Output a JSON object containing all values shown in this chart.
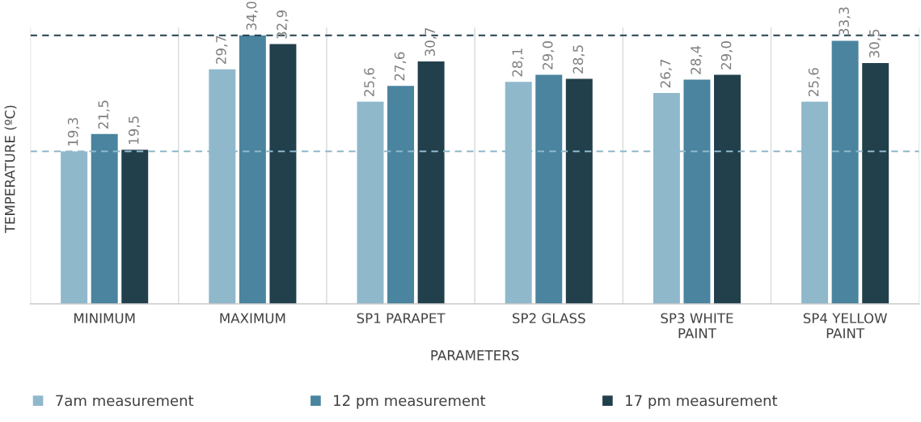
{
  "chart_data": {
    "type": "bar",
    "xlabel": "PARAMETERS",
    "ylabel": "TEMPERATURE (ºC)",
    "categories": [
      "MINIMUM",
      "MAXIMUM",
      "SP1 PARAPET",
      "SP2 GLASS",
      "SP3 WHITE\nPAINT",
      "SP4 YELLOW\nPAINT"
    ],
    "series": [
      {
        "name": "7am measurement",
        "color": "#8fb8cb",
        "values": [
          19.3,
          29.7,
          25.6,
          28.1,
          26.7,
          25.6
        ],
        "value_labels": [
          "19,3",
          "29,7",
          "25,6",
          "28,1",
          "26,7",
          "25,6"
        ]
      },
      {
        "name": "12 pm measurement",
        "color": "#4a849f",
        "values": [
          21.5,
          34.0,
          27.6,
          29.0,
          28.4,
          33.3
        ],
        "value_labels": [
          "21,5",
          "34,0",
          "27,6",
          "29,0",
          "28,4",
          "33,3"
        ]
      },
      {
        "name": "17 pm measurement",
        "color": "#22404c",
        "values": [
          19.5,
          32.9,
          30.7,
          28.5,
          29.0,
          30.5
        ],
        "value_labels": [
          "19,5",
          "32,9",
          "30,7",
          "28,5",
          "29,0",
          "30,5"
        ]
      }
    ],
    "ref_lines": [
      {
        "axis": "y",
        "value": 19.3,
        "color": "#8fb8cb",
        "line_style": "dashed"
      },
      {
        "axis": "y",
        "value": 34.0,
        "color": "#22404c",
        "line_style": "dashed"
      }
    ],
    "ylim": [
      0,
      35
    ],
    "tick_labels": "x",
    "grid": "x",
    "legend": "bottom"
  }
}
